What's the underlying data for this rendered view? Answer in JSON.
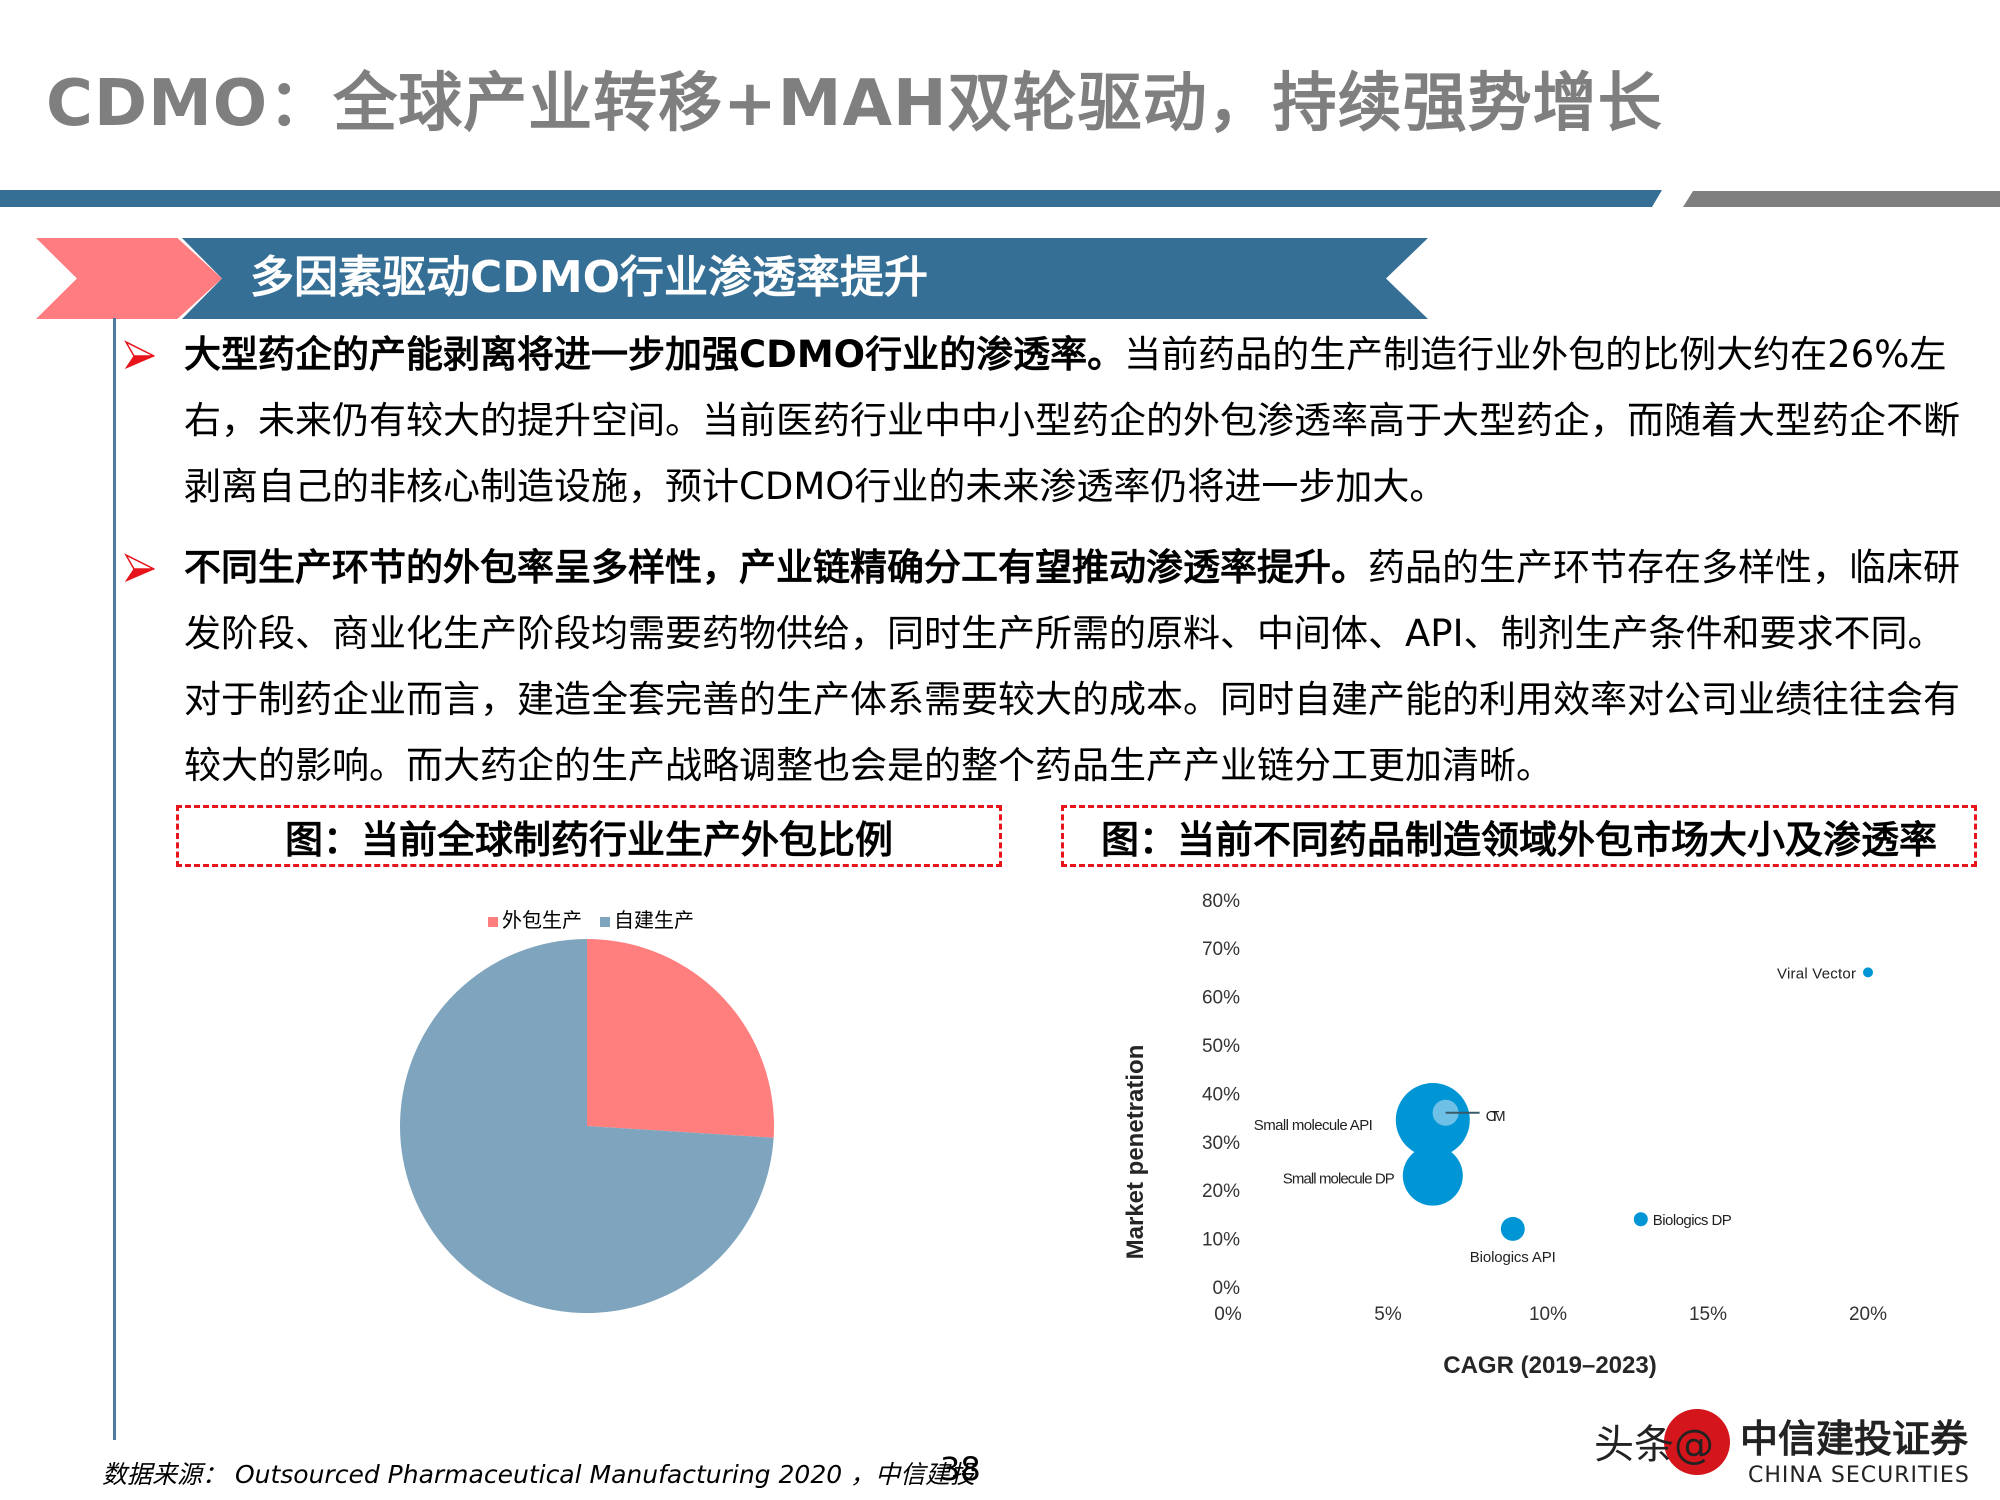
{
  "slide": {
    "title": "CDMO：全球产业转移+MAH双轮驱动，持续强势增长",
    "section_banner": "多因素驱动CDMO行业渗透率提升",
    "bullets": [
      {
        "bold": "大型药企的产能剥离将进一步加强CDMO行业的渗透率。",
        "text": "当前药品的生产制造行业外包的比例大约在26%左右，未来仍有较大的提升空间。当前医药行业中中小型药企的外包渗透率高于大型药企，而随着大型药企不断剥离自己的非核心制造设施，预计CDMO行业的未来渗透率仍将进一步加大。"
      },
      {
        "bold": "不同生产环节的外包率呈多样性，产业链精确分工有望推动渗透率提升。",
        "text": "药品的生产环节存在多样性，临床研发阶段、商业化生产阶段均需要药物供给，同时生产所需的原料、中间体、API、制剂生产条件和要求不同。对于制药企业而言，建造全套完善的生产体系需要较大的成本。同时自建产能的利用效率对公司业绩往往会有较大的影响。而大药企的生产战略调整也会是的整个药品生产产业链分工更加清晰。"
      }
    ],
    "caption_left": "图：当前全球制药行业生产外包比例",
    "caption_right": "图：当前不同药品制造领域外包市场大小及渗透率",
    "source": "数据来源： Outsourced Pharmaceutical Manufacturing 2020 ，中信建投",
    "page_number": "38",
    "watermark": "头条@中信建投证券 CHINA SECURITIES"
  },
  "colors": {
    "title_gray": "#7f7f7f",
    "brand_blue": "#356f95",
    "accent_pink": "#ff7c80",
    "caption_red": "#e8141b",
    "pie_outsourced": "#ff7f7f",
    "pie_inhouse": "#7fa5be",
    "bubble": "#0096d6",
    "bubble_light": "#6fc0e6"
  },
  "chart_data": [
    {
      "type": "pie",
      "title": "图：当前全球制药行业生产外包比例",
      "categories": [
        "外包生产",
        "自建生产"
      ],
      "values": [
        26,
        74
      ],
      "legend_position": "top",
      "colors": [
        "#ff7f7f",
        "#7fa5be"
      ]
    },
    {
      "type": "scatter",
      "title": "图：当前不同药品制造领域外包市场大小及渗透率",
      "xlabel": "CAGR (2019–2023)",
      "ylabel": "Market penetration",
      "xlim": [
        0,
        20
      ],
      "ylim": [
        0,
        80
      ],
      "x_ticks": [
        "0%",
        "5%",
        "10%",
        "15%",
        "20%"
      ],
      "y_ticks": [
        "0%",
        "10%",
        "20%",
        "30%",
        "40%",
        "50%",
        "60%",
        "70%",
        "80%"
      ],
      "grid": false,
      "series": [
        {
          "name": "Small molecule API",
          "x": 6.4,
          "y": 34.5,
          "size": 37
        },
        {
          "name": "CTM",
          "x": 6.8,
          "y": 36,
          "size": 13
        },
        {
          "name": "Small molecule DP",
          "x": 6.4,
          "y": 23,
          "size": 30
        },
        {
          "name": "Biologics API",
          "x": 8.9,
          "y": 12,
          "size": 12
        },
        {
          "name": "Biologics DP",
          "x": 12.9,
          "y": 14,
          "size": 7
        },
        {
          "name": "Viral Vector",
          "x": 20,
          "y": 65,
          "size": 5
        }
      ]
    }
  ]
}
